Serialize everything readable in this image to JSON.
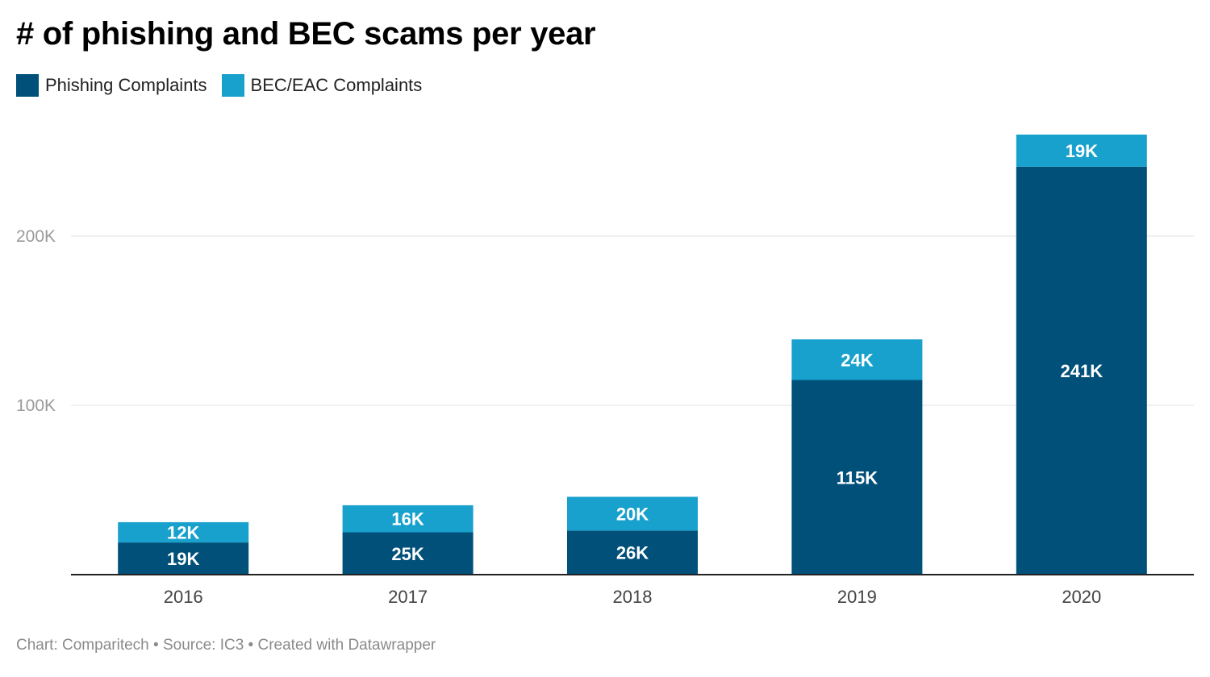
{
  "title": "# of phishing and BEC scams per year",
  "legend": [
    {
      "label": "Phishing Complaints",
      "color": "#00507a"
    },
    {
      "label": "BEC/EAC Complaints",
      "color": "#18a1cd"
    }
  ],
  "footer": {
    "chart": "Chart: Comparitech",
    "source": "Source: IC3",
    "created": "Created with Datawrapper",
    "separator": " • "
  },
  "chart_data": {
    "type": "bar",
    "stacked": true,
    "categories": [
      "2016",
      "2017",
      "2018",
      "2019",
      "2020"
    ],
    "series": [
      {
        "name": "Phishing Complaints",
        "color": "#00507a",
        "values": [
          19000,
          25000,
          26000,
          115000,
          241000
        ],
        "labels": [
          "19K",
          "25K",
          "26K",
          "115K",
          "241K"
        ]
      },
      {
        "name": "BEC/EAC Complaints",
        "color": "#18a1cd",
        "values": [
          12000,
          16000,
          20000,
          24000,
          19000
        ],
        "labels": [
          "12K",
          "16K",
          "20K",
          "24K",
          "19K"
        ]
      }
    ],
    "ylim": [
      0,
      260000
    ],
    "yticks": [
      100000,
      200000
    ],
    "ytick_labels": [
      "100K",
      "200K"
    ],
    "grid": true,
    "legend_position": "top-left",
    "title": "# of phishing and BEC scams per year",
    "xlabel": "",
    "ylabel": ""
  }
}
